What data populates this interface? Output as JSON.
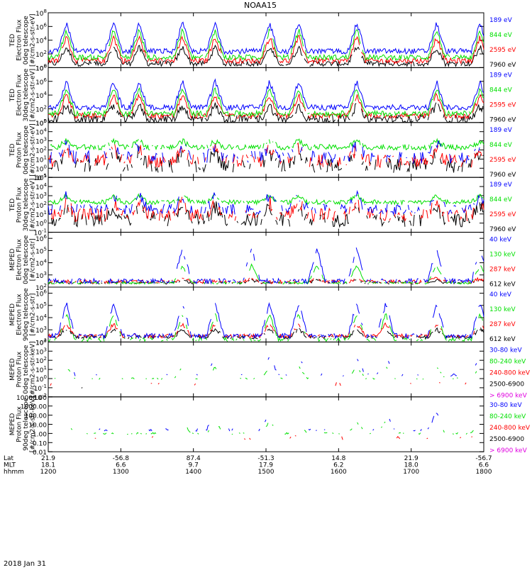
{
  "title": "NOAA15",
  "date_label": "2018 Jan 31",
  "colors": {
    "black": "#000000",
    "red": "#ff0000",
    "green": "#00e000",
    "blue": "#0000ff",
    "magenta": "#e000e0"
  },
  "footer": {
    "rows": [
      {
        "label": "Lat",
        "values": [
          "21.9",
          "-56.8",
          "87.4",
          "-51.3",
          "14.8",
          "21.9",
          "-56.7"
        ]
      },
      {
        "label": "MLT",
        "values": [
          "18.1",
          "6.6",
          "9.7",
          "17.9",
          "6.2",
          "18.0",
          "6.6"
        ]
      },
      {
        "label": "hhmm",
        "values": [
          "1200",
          "1300",
          "1400",
          "1500",
          "1600",
          "1700",
          "1800"
        ]
      }
    ]
  },
  "chart_data": [
    {
      "type": "line",
      "ylabel": [
        "TED",
        "Electron Flux",
        "0deg telescope",
        "[#/cm2-s-str-eV]"
      ],
      "y_ticks": [
        "10^0",
        "10^2",
        "10^4",
        "10^6",
        "10^8"
      ],
      "yscale": "log",
      "ylim_exp": [
        0,
        8
      ],
      "x": {
        "start": "12:00",
        "end": "18:00",
        "ticks": [
          "1200",
          "1300",
          "1400",
          "1500",
          "1600",
          "1700",
          "1800"
        ]
      },
      "series": [
        {
          "name": "7960 eV",
          "color": "black",
          "baseline_exp": 0.6,
          "peak_exp": 3.0,
          "noise": 0.4,
          "gaps": 0.02
        },
        {
          "name": "2595 eV",
          "color": "red",
          "baseline_exp": 1.0,
          "peak_exp": 4.5,
          "noise": 0.4,
          "gaps": 0.02
        },
        {
          "name": "844 eV",
          "color": "green",
          "baseline_exp": 1.5,
          "peak_exp": 5.5,
          "noise": 0.4,
          "gaps": 0.02
        },
        {
          "name": "189 eV",
          "color": "blue",
          "baseline_exp": 2.4,
          "peak_exp": 6.5,
          "noise": 0.4,
          "gaps": 0.0
        }
      ],
      "peaks_hours": [
        0.25,
        0.9,
        1.25,
        1.85,
        2.3,
        3.05,
        3.45,
        4.25,
        5.35,
        5.95
      ]
    },
    {
      "type": "line",
      "ylabel": [
        "TED",
        "Electron Flux",
        "30deg telescope",
        "[#/cm2-s-str-eV]"
      ],
      "y_ticks": [
        "10^0",
        "10^2",
        "10^4",
        "10^6",
        "10^8"
      ],
      "yscale": "log",
      "ylim_exp": [
        0,
        8
      ],
      "series": [
        {
          "name": "7960 eV",
          "color": "black",
          "baseline_exp": 0.5,
          "peak_exp": 2.5,
          "noise": 0.6,
          "gaps": 0.05
        },
        {
          "name": "2595 eV",
          "color": "red",
          "baseline_exp": 1.0,
          "peak_exp": 4.0,
          "noise": 0.4,
          "gaps": 0.03
        },
        {
          "name": "844 eV",
          "color": "green",
          "baseline_exp": 1.3,
          "peak_exp": 5.0,
          "noise": 0.4,
          "gaps": 0.02
        },
        {
          "name": "189 eV",
          "color": "blue",
          "baseline_exp": 2.2,
          "peak_exp": 6.0,
          "noise": 0.4,
          "gaps": 0.0
        }
      ],
      "peaks_hours": [
        0.25,
        0.9,
        1.25,
        1.85,
        2.3,
        3.05,
        3.45,
        4.25,
        5.35,
        5.95
      ]
    },
    {
      "type": "line",
      "ylabel": [
        "TED",
        "Proton Flux",
        "0deg telescope",
        "[#/cm2-s-str-eV]"
      ],
      "y_ticks": [
        "10^-1",
        "10^0",
        "10^1",
        "10^2",
        "10^3",
        "10^4",
        "10^5"
      ],
      "yscale": "log",
      "ylim_exp": [
        -1,
        5
      ],
      "series": [
        {
          "name": "7960 eV",
          "color": "black",
          "baseline_exp": 0.3,
          "peak_exp": 1.8,
          "noise": 0.8,
          "gaps": 0.3
        },
        {
          "name": "2595 eV",
          "color": "red",
          "baseline_exp": 0.8,
          "peak_exp": 2.2,
          "noise": 0.7,
          "gaps": 0.3
        },
        {
          "name": "844 eV",
          "color": "green",
          "baseline_exp": 2.3,
          "peak_exp": 3.0,
          "noise": 0.3,
          "gaps": 0.05
        },
        {
          "name": "189 eV",
          "color": "blue",
          "baseline_exp": 1.2,
          "peak_exp": 2.6,
          "noise": 0.7,
          "gaps": 0.4
        }
      ],
      "peaks_hours": [
        0.25,
        0.9,
        1.25,
        1.85,
        2.3,
        3.05,
        3.45,
        4.25,
        5.35,
        5.95
      ]
    },
    {
      "type": "line",
      "ylabel": [
        "TED",
        "Proton Flux",
        "30deg telescope",
        "[#/cm2-s-str-eV]"
      ],
      "y_ticks": [
        "10^-1",
        "10^0",
        "10^1",
        "10^2",
        "10^3",
        "10^4",
        "10^5"
      ],
      "yscale": "log",
      "ylim_exp": [
        -1,
        5
      ],
      "series": [
        {
          "name": "7960 eV",
          "color": "black",
          "baseline_exp": 0.4,
          "peak_exp": 1.8,
          "noise": 0.8,
          "gaps": 0.3
        },
        {
          "name": "2595 eV",
          "color": "red",
          "baseline_exp": 0.9,
          "peak_exp": 2.3,
          "noise": 0.7,
          "gaps": 0.3
        },
        {
          "name": "844 eV",
          "color": "green",
          "baseline_exp": 2.3,
          "peak_exp": 3.0,
          "noise": 0.25,
          "gaps": 0.05
        },
        {
          "name": "189 eV",
          "color": "blue",
          "baseline_exp": 1.5,
          "peak_exp": 3.0,
          "noise": 0.6,
          "gaps": 0.3
        }
      ],
      "peaks_hours": [
        0.25,
        0.9,
        1.25,
        1.85,
        2.3,
        3.05,
        3.45,
        4.25,
        5.35,
        5.95
      ]
    },
    {
      "type": "line",
      "ylabel": [
        "MEPED",
        "Electron Flux",
        "0deg telescope",
        "[#/cm2-s-str]"
      ],
      "y_ticks": [
        "10^2",
        "10^3",
        "10^4",
        "10^5",
        "10^6"
      ],
      "yscale": "log",
      "ylim_exp": [
        2,
        6.5
      ],
      "series": [
        {
          "name": "612 keV",
          "color": "black",
          "baseline_exp": 2.35,
          "peak_exp": 2.6,
          "noise": 0.1,
          "gaps": 0.3
        },
        {
          "name": "287 keV",
          "color": "red",
          "baseline_exp": 2.45,
          "peak_exp": 2.7,
          "noise": 0.15,
          "gaps": 0.2
        },
        {
          "name": "130 keV",
          "color": "green",
          "baseline_exp": 2.35,
          "peak_exp": 3.8,
          "noise": 0.1,
          "gaps": 0.2
        },
        {
          "name": "40 keV",
          "color": "blue",
          "baseline_exp": 2.5,
          "peak_exp": 5.2,
          "noise": 0.2,
          "gaps": 0.2
        }
      ],
      "peaks_hours": [
        1.85,
        2.8,
        3.7,
        4.25,
        5.35,
        5.95
      ]
    },
    {
      "type": "line",
      "ylabel": [
        "MEPED",
        "Electron Flux",
        "90deg telescope",
        "[#/cm2-s-str]"
      ],
      "y_ticks": [
        "10^2",
        "10^3",
        "10^4",
        "10^5",
        "10^6"
      ],
      "yscale": "log",
      "ylim_exp": [
        2,
        6.5
      ],
      "series": [
        {
          "name": "612 keV",
          "color": "black",
          "baseline_exp": 2.4,
          "peak_exp": 3.1,
          "noise": 0.15,
          "gaps": 0.2
        },
        {
          "name": "287 keV",
          "color": "red",
          "baseline_exp": 2.5,
          "peak_exp": 3.5,
          "noise": 0.15,
          "gaps": 0.2
        },
        {
          "name": "130 keV",
          "color": "green",
          "baseline_exp": 2.2,
          "peak_exp": 4.3,
          "noise": 0.15,
          "gaps": 0.3
        },
        {
          "name": "40 keV",
          "color": "blue",
          "baseline_exp": 2.5,
          "peak_exp": 5.2,
          "noise": 0.2,
          "gaps": 0.2
        }
      ],
      "peaks_hours": [
        0.25,
        0.9,
        1.85,
        2.3,
        3.05,
        3.45,
        4.25,
        4.65,
        5.35,
        5.95
      ]
    },
    {
      "type": "line",
      "ylabel": [
        "MEPED",
        "Proton Flux",
        "0deg telescope",
        "[#/cm2-s-str-keV]"
      ],
      "y_ticks": [
        "10^-2",
        "10^-1",
        "10^0",
        "10^1",
        "10^2",
        "10^3",
        "10^4"
      ],
      "yscale": "log",
      "ylim_exp": [
        -2,
        4
      ],
      "series": [
        {
          "name": "> 6900 keV",
          "color": "magenta",
          "baseline_exp": -1.3,
          "peak_exp": -1.2,
          "noise": 0.05,
          "gaps": 0.98
        },
        {
          "name": "2500-6900",
          "color": "black",
          "baseline_exp": -1.0,
          "peak_exp": -0.9,
          "noise": 0.05,
          "gaps": 0.98
        },
        {
          "name": "240-800 keV",
          "color": "red",
          "baseline_exp": -0.6,
          "peak_exp": -0.3,
          "noise": 0.2,
          "gaps": 0.85
        },
        {
          "name": "80-240 keV",
          "color": "green",
          "baseline_exp": 0.0,
          "peak_exp": 1.3,
          "noise": 0.1,
          "gaps": 0.6
        },
        {
          "name": "30-80 keV",
          "color": "blue",
          "baseline_exp": 0.4,
          "peak_exp": 2.4,
          "noise": 0.15,
          "gaps": 0.75
        }
      ],
      "peaks_hours": [
        0.25,
        1.85,
        2.3,
        3.05,
        3.45,
        4.25,
        4.65,
        5.35,
        5.95
      ]
    },
    {
      "type": "line",
      "ylabel": [
        "MEPED",
        "Proton Flux",
        "90deg telescope",
        "[#/cm2-s-str-keV]"
      ],
      "y_ticks": [
        "0.01",
        "0.10",
        "1.00",
        "10.00",
        "100.00",
        "1000.00",
        "10000.00"
      ],
      "yscale": "log",
      "ylim_exp": [
        -2,
        4
      ],
      "series": [
        {
          "name": "> 6900 keV",
          "color": "magenta",
          "baseline_exp": -1.3,
          "peak_exp": -1.2,
          "noise": 0.05,
          "gaps": 0.98
        },
        {
          "name": "2500-6900",
          "color": "black",
          "baseline_exp": -1.0,
          "peak_exp": -0.9,
          "noise": 0.05,
          "gaps": 0.98
        },
        {
          "name": "240-800 keV",
          "color": "red",
          "baseline_exp": -0.5,
          "peak_exp": -0.1,
          "noise": 0.2,
          "gaps": 0.8
        },
        {
          "name": "80-240 keV",
          "color": "green",
          "baseline_exp": 0.0,
          "peak_exp": 1.3,
          "noise": 0.1,
          "gaps": 0.6
        },
        {
          "name": "30-80 keV",
          "color": "blue",
          "baseline_exp": 0.4,
          "peak_exp": 2.4,
          "noise": 0.15,
          "gaps": 0.75
        }
      ],
      "peaks_hours": [
        0.25,
        1.85,
        2.3,
        3.05,
        3.45,
        4.25,
        4.65,
        5.35,
        5.95
      ]
    }
  ]
}
